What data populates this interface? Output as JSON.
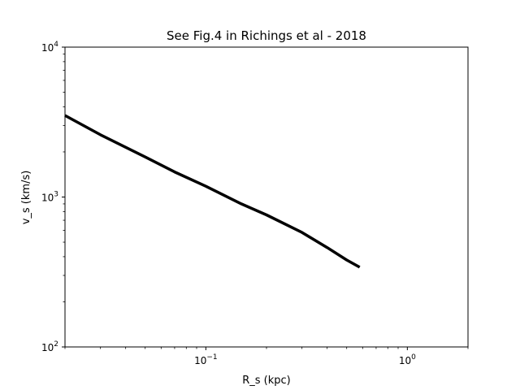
{
  "chart_data": {
    "type": "line",
    "title": "See Fig.4 in Richings et al - 2018",
    "xlabel": "R_s (kpc)",
    "ylabel": "v_s (km/s)",
    "xscale": "log",
    "yscale": "log",
    "xlim": [
      0.02,
      2
    ],
    "ylim": [
      100,
      10000
    ],
    "grid": false,
    "x_ticks": [
      {
        "value": 0.1,
        "base": "10",
        "exp": "−1"
      },
      {
        "value": 1,
        "base": "10",
        "exp": "0"
      }
    ],
    "y_ticks": [
      {
        "value": 100,
        "base": "10",
        "exp": "2"
      },
      {
        "value": 1000,
        "base": "10",
        "exp": "3"
      },
      {
        "value": 10000,
        "base": "10",
        "exp": "4"
      }
    ],
    "series": [
      {
        "color": "#000000",
        "x": [
          0.02,
          0.03,
          0.05,
          0.07,
          0.1,
          0.15,
          0.2,
          0.3,
          0.4,
          0.5,
          0.58
        ],
        "y": [
          3500,
          2600,
          1850,
          1470,
          1180,
          900,
          760,
          580,
          460,
          380,
          340
        ]
      }
    ]
  }
}
